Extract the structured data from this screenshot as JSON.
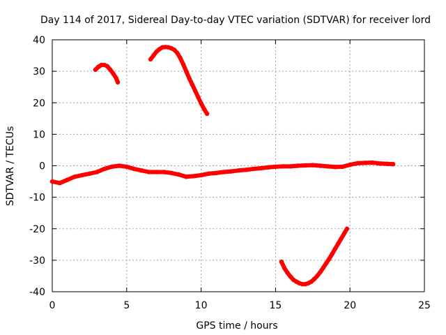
{
  "chart_data": {
    "type": "scatter",
    "title": "Day 114 of 2017, Sidereal Day-to-day VTEC variation (SDTVAR) for receiver lord",
    "xlabel": "GPS time / hours",
    "ylabel": "SDTVAR / TECUs",
    "xlim": [
      0,
      25
    ],
    "ylim": [
      -40,
      40
    ],
    "xticks": [
      0,
      5,
      10,
      15,
      20,
      25
    ],
    "yticks": [
      -40,
      -30,
      -20,
      -10,
      0,
      10,
      20,
      30,
      40
    ],
    "grid": true,
    "series_color": "#ff0000",
    "series": [
      {
        "name": "main",
        "points": [
          [
            0,
            -5
          ],
          [
            0.5,
            -5.5
          ],
          [
            1,
            -4.5
          ],
          [
            1.5,
            -3.5
          ],
          [
            2,
            -3
          ],
          [
            2.5,
            -2.5
          ],
          [
            3,
            -2
          ],
          [
            3.5,
            -1
          ],
          [
            4,
            -0.3
          ],
          [
            4.5,
            0
          ],
          [
            5,
            -0.3
          ],
          [
            5.5,
            -1
          ],
          [
            6,
            -1.5
          ],
          [
            6.5,
            -2
          ],
          [
            7,
            -2
          ],
          [
            7.5,
            -2
          ],
          [
            8,
            -2.3
          ],
          [
            8.5,
            -2.8
          ],
          [
            9,
            -3.5
          ],
          [
            9.5,
            -3.3
          ],
          [
            10,
            -3
          ],
          [
            10.5,
            -2.5
          ],
          [
            11,
            -2.3
          ],
          [
            11.5,
            -2
          ],
          [
            12,
            -1.8
          ],
          [
            12.5,
            -1.5
          ],
          [
            13,
            -1.3
          ],
          [
            13.5,
            -1
          ],
          [
            14,
            -0.8
          ],
          [
            14.5,
            -0.5
          ],
          [
            15,
            -0.3
          ],
          [
            15.5,
            -0.2
          ],
          [
            16,
            -0.2
          ],
          [
            16.5,
            0
          ],
          [
            17,
            0.1
          ],
          [
            17.5,
            0.2
          ],
          [
            18,
            0
          ],
          [
            18.5,
            -0.2
          ],
          [
            19,
            -0.4
          ],
          [
            19.5,
            -0.3
          ],
          [
            20,
            0.3
          ],
          [
            20.5,
            0.8
          ],
          [
            21,
            0.9
          ],
          [
            21.5,
            1
          ],
          [
            22,
            0.7
          ],
          [
            22.5,
            0.6
          ],
          [
            22.9,
            0.5
          ]
        ]
      },
      {
        "name": "arc1",
        "points": [
          [
            2.9,
            30.5
          ],
          [
            3.1,
            31.4
          ],
          [
            3.3,
            32
          ],
          [
            3.5,
            32
          ],
          [
            3.7,
            31.6
          ],
          [
            3.9,
            30.5
          ],
          [
            4.1,
            29.2
          ],
          [
            4.3,
            27.8
          ],
          [
            4.4,
            26.5
          ]
        ]
      },
      {
        "name": "arc2",
        "points": [
          [
            6.6,
            33.8
          ],
          [
            6.8,
            35
          ],
          [
            7,
            36.2
          ],
          [
            7.2,
            37
          ],
          [
            7.4,
            37.6
          ],
          [
            7.6,
            37.7
          ],
          [
            7.8,
            37.6
          ],
          [
            8,
            37.3
          ],
          [
            8.2,
            36.8
          ],
          [
            8.4,
            35.8
          ],
          [
            8.6,
            34.2
          ],
          [
            8.8,
            32.2
          ],
          [
            9,
            30
          ],
          [
            9.2,
            27.8
          ],
          [
            9.4,
            25.8
          ],
          [
            9.6,
            23.8
          ],
          [
            9.8,
            21.8
          ],
          [
            10,
            19.8
          ],
          [
            10.2,
            18
          ],
          [
            10.4,
            16.5
          ]
        ]
      },
      {
        "name": "arc3",
        "points": [
          [
            15.4,
            -30.5
          ],
          [
            15.6,
            -32.5
          ],
          [
            15.8,
            -34
          ],
          [
            16,
            -35.2
          ],
          [
            16.2,
            -36.2
          ],
          [
            16.4,
            -36.8
          ],
          [
            16.6,
            -37.3
          ],
          [
            16.8,
            -37.6
          ],
          [
            17,
            -37.6
          ],
          [
            17.2,
            -37.3
          ],
          [
            17.4,
            -36.8
          ],
          [
            17.6,
            -36
          ],
          [
            17.8,
            -35
          ],
          [
            18,
            -33.8
          ],
          [
            18.2,
            -32.4
          ],
          [
            18.4,
            -31
          ],
          [
            18.6,
            -29.6
          ],
          [
            18.8,
            -28
          ],
          [
            19,
            -26.4
          ],
          [
            19.2,
            -24.8
          ],
          [
            19.4,
            -23.2
          ],
          [
            19.6,
            -21.6
          ],
          [
            19.8,
            -20
          ]
        ]
      }
    ]
  }
}
